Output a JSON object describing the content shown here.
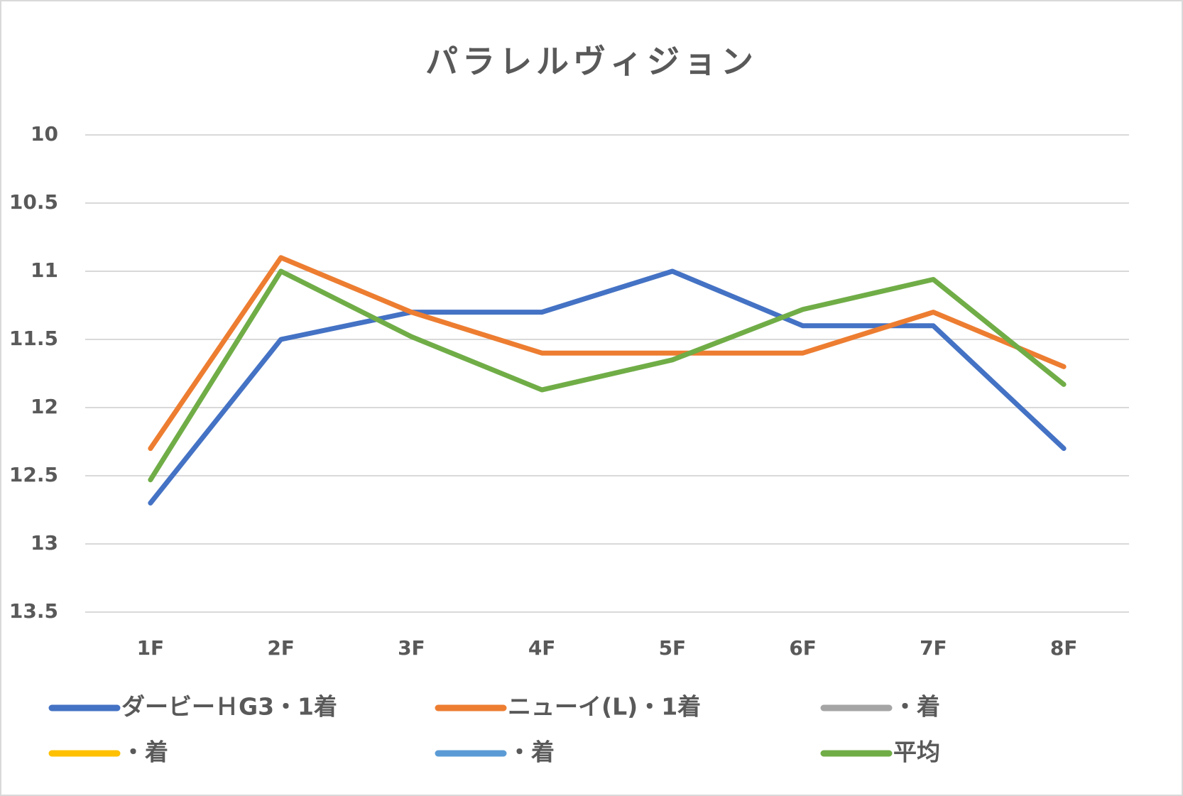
{
  "chart_data": {
    "type": "line",
    "title": "パラレルヴィジョン",
    "categories": [
      "1F",
      "2F",
      "3F",
      "4F",
      "5F",
      "6F",
      "7F",
      "8F"
    ],
    "series": [
      {
        "name": "ダービーＨG3・1着",
        "color": "#4472c4",
        "values": [
          12.7,
          11.5,
          11.3,
          11.3,
          11.0,
          11.4,
          11.4,
          12.3
        ]
      },
      {
        "name": "ニューイ(L)・1着",
        "color": "#ed7d31",
        "values": [
          12.3,
          10.9,
          11.3,
          11.6,
          11.6,
          11.6,
          11.3,
          11.7
        ]
      },
      {
        "name": "・着",
        "color": "#a5a5a5",
        "values": [
          null,
          null,
          null,
          null,
          null,
          null,
          null,
          null
        ]
      },
      {
        "name": "・着",
        "color": "#ffc000",
        "values": [
          null,
          null,
          null,
          null,
          null,
          null,
          null,
          null
        ]
      },
      {
        "name": "・着",
        "color": "#5b9bd5",
        "values": [
          null,
          null,
          null,
          null,
          null,
          null,
          null,
          null
        ]
      },
      {
        "name": "平均",
        "color": "#70ad47",
        "values": [
          12.53,
          11.0,
          11.48,
          11.87,
          11.65,
          11.28,
          11.06,
          11.83
        ]
      }
    ],
    "ylim": [
      10,
      13.5
    ],
    "yaxis_reversed": true,
    "yticks": [
      10,
      10.5,
      11,
      11.5,
      12,
      12.5,
      13,
      13.5
    ],
    "grid": true,
    "legend": "bottom"
  }
}
